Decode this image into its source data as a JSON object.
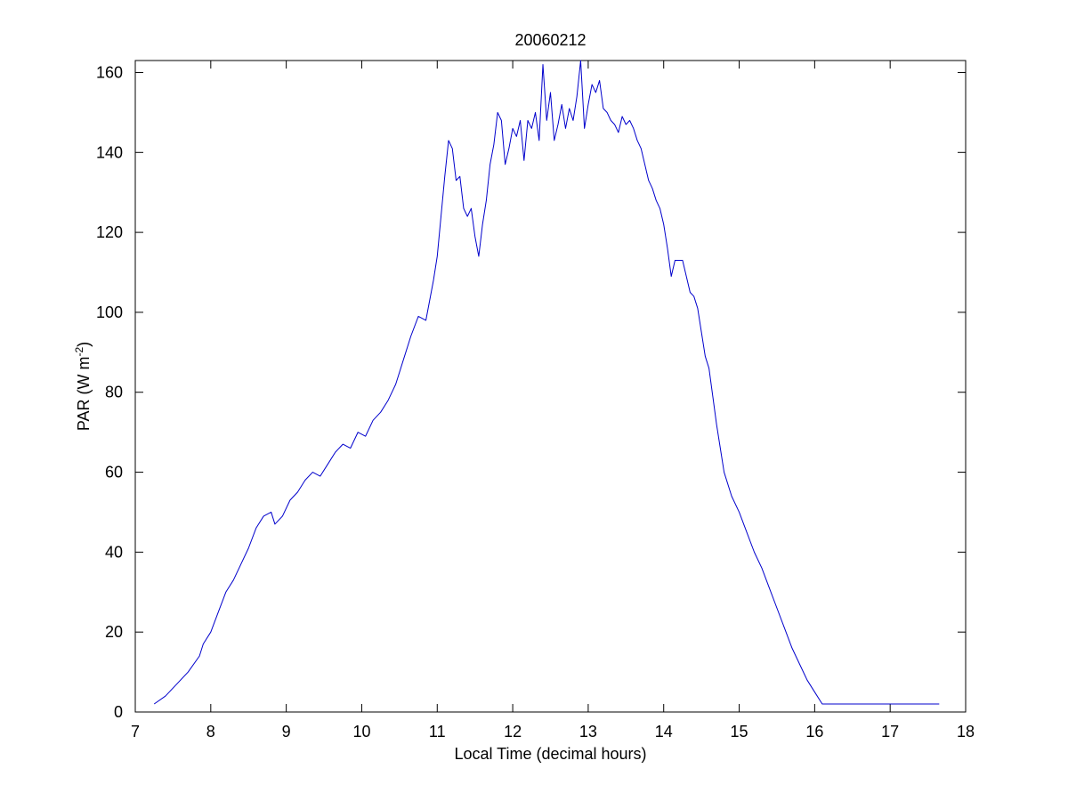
{
  "chart_data": {
    "type": "line",
    "title": "20060212",
    "xlabel": "Local Time (decimal hours)",
    "ylabel": {
      "main": "PAR (W m",
      "superscript": "-2",
      "close": ")"
    },
    "xlim": [
      7,
      18
    ],
    "ylim": [
      0,
      163
    ],
    "xticks": [
      7,
      8,
      9,
      10,
      11,
      12,
      13,
      14,
      15,
      16,
      17,
      18
    ],
    "yticks": [
      0,
      20,
      40,
      60,
      80,
      100,
      120,
      140,
      160
    ],
    "xtick_labels": [
      "7",
      "8",
      "9",
      "10",
      "11",
      "12",
      "13",
      "14",
      "15",
      "16",
      "17",
      "18"
    ],
    "ytick_labels": [
      "0",
      "20",
      "40",
      "60",
      "80",
      "100",
      "120",
      "140",
      "160"
    ],
    "grid": false,
    "legend": "none",
    "line_color": "#0000cc",
    "series": [
      {
        "x": [
          7.25,
          7.4,
          7.55,
          7.7,
          7.85,
          7.9,
          8.0,
          8.1,
          8.2,
          8.3,
          8.4,
          8.5,
          8.6,
          8.7,
          8.8,
          8.85,
          8.95,
          9.05,
          9.15,
          9.25,
          9.35,
          9.45,
          9.55,
          9.65,
          9.75,
          9.85,
          9.95,
          10.05,
          10.15,
          10.25,
          10.35,
          10.45,
          10.55,
          10.65,
          10.75,
          10.85,
          10.95,
          11.0,
          11.05,
          11.1,
          11.15,
          11.2,
          11.25,
          11.3,
          11.35,
          11.4,
          11.45,
          11.5,
          11.55,
          11.6,
          11.65,
          11.7,
          11.75,
          11.8,
          11.85,
          11.9,
          11.95,
          12.0,
          12.05,
          12.1,
          12.15,
          12.2,
          12.25,
          12.3,
          12.35,
          12.4,
          12.45,
          12.5,
          12.55,
          12.6,
          12.65,
          12.7,
          12.75,
          12.8,
          12.85,
          12.9,
          12.95,
          13.0,
          13.05,
          13.1,
          13.15,
          13.2,
          13.25,
          13.3,
          13.35,
          13.4,
          13.45,
          13.5,
          13.55,
          13.6,
          13.65,
          13.7,
          13.75,
          13.8,
          13.85,
          13.9,
          13.95,
          14.0,
          14.05,
          14.1,
          14.15,
          14.2,
          14.25,
          14.3,
          14.35,
          14.4,
          14.45,
          14.5,
          14.55,
          14.6,
          14.65,
          14.7,
          14.75,
          14.8,
          14.9,
          15.0,
          15.1,
          15.2,
          15.3,
          15.4,
          15.5,
          15.6,
          15.7,
          15.8,
          15.9,
          16.0,
          16.1,
          16.2,
          16.3,
          16.4,
          16.5,
          16.6,
          16.7,
          16.8,
          16.9,
          17.0,
          17.1,
          17.2,
          17.3,
          17.4,
          17.5,
          17.65
        ],
        "y": [
          2,
          4,
          7,
          10,
          14,
          17,
          20,
          25,
          30,
          33,
          37,
          41,
          46,
          49,
          50,
          47,
          49,
          53,
          55,
          58,
          60,
          59,
          62,
          65,
          67,
          66,
          70,
          69,
          73,
          75,
          78,
          82,
          88,
          94,
          99,
          98,
          108,
          114,
          124,
          134,
          143,
          141,
          133,
          134,
          126,
          124,
          126,
          119,
          114,
          122,
          128,
          137,
          142,
          150,
          148,
          137,
          141,
          146,
          144,
          148,
          138,
          148,
          146,
          150,
          143,
          162,
          148,
          155,
          143,
          147,
          152,
          146,
          151,
          148,
          154,
          163,
          146,
          152,
          157,
          155,
          158,
          151,
          150,
          148,
          147,
          145,
          149,
          147,
          148,
          146,
          143,
          141,
          137,
          133,
          131,
          128,
          126,
          122,
          116,
          109,
          113,
          113,
          113,
          109,
          105,
          104,
          101,
          95,
          89,
          86,
          79,
          72,
          66,
          60,
          54,
          50,
          45,
          40,
          36,
          31,
          26,
          21,
          16,
          12,
          8,
          5,
          2,
          2,
          2,
          2,
          2,
          2,
          2,
          2,
          2,
          2,
          2,
          2,
          2,
          2,
          2,
          2
        ]
      }
    ]
  }
}
